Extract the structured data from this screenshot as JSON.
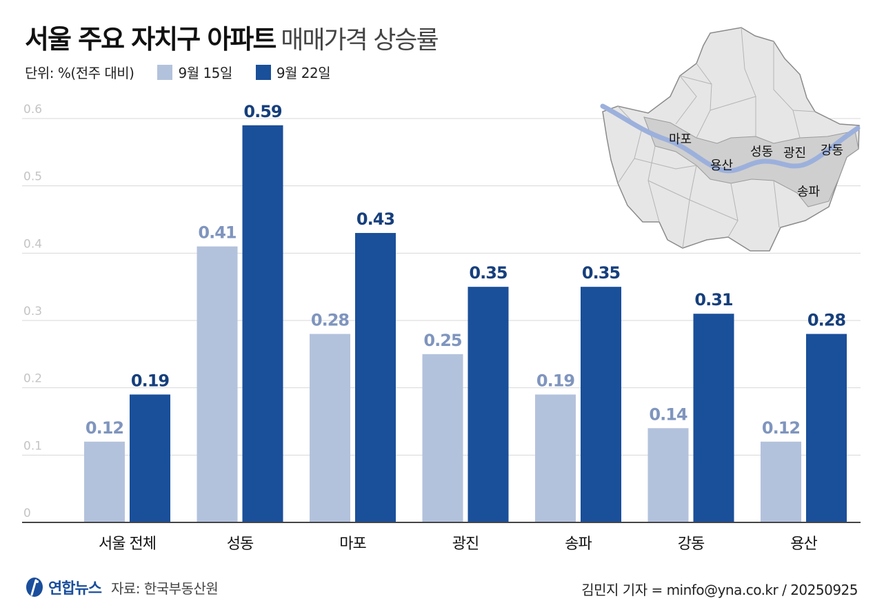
{
  "header": {
    "title_bold": "서울 주요 자치구 아파트",
    "title_light": "매매가격 상승률",
    "unit": "단위: %(전주 대비)"
  },
  "colors": {
    "series1": "#b3c2dc",
    "series2": "#1a4f9a",
    "label1": "#7f95be",
    "label2": "#163f7c",
    "grid": "#d7d7d7",
    "map_fill": "#e6e6e6",
    "map_highlight": "#cfcfcf",
    "river": "#9cb0dc"
  },
  "chart_data": {
    "type": "bar",
    "title": "서울 주요 자치구 아파트 매매가격 상승률",
    "ylabel": "",
    "xlabel": "",
    "ylim": [
      0,
      0.6
    ],
    "yticks": [
      "0",
      "0.1",
      "0.2",
      "0.3",
      "0.4",
      "0.5",
      "0.6"
    ],
    "categories": [
      "서울 전체",
      "성동",
      "마포",
      "광진",
      "송파",
      "강동",
      "용산"
    ],
    "series": [
      {
        "name": "9월 15일",
        "values": [
          0.12,
          0.41,
          0.28,
          0.25,
          0.19,
          0.14,
          0.12
        ]
      },
      {
        "name": "9월 22일",
        "values": [
          0.19,
          0.59,
          0.43,
          0.35,
          0.35,
          0.31,
          0.28
        ]
      }
    ],
    "value_labels": [
      [
        "0.12",
        "0.41",
        "0.28",
        "0.25",
        "0.19",
        "0.14",
        "0.12"
      ],
      [
        "0.19",
        "0.59",
        "0.43",
        "0.35",
        "0.35",
        "0.31",
        "0.28"
      ]
    ],
    "grid": true,
    "legend": "top-left"
  },
  "map": {
    "labels": [
      "마포",
      "용산",
      "성동",
      "광진",
      "강동",
      "송파"
    ]
  },
  "footer": {
    "logo_text": "연합뉴스",
    "source": "자료: 한국부동산원",
    "credit": "김민지 기자 = minfo@yna.co.kr / 20250925"
  }
}
